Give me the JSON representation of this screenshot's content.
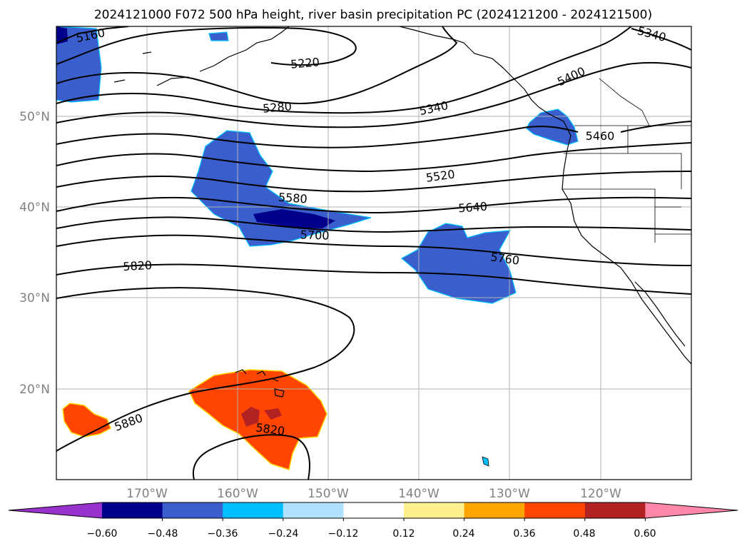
{
  "title": "2024121000 F072 500 hPa height, river basin precipitation PC (2024121200 - 2024121500)",
  "lat_labels": [
    "50°N",
    "40°N",
    "30°N",
    "20°N"
  ],
  "lon_labels": [
    "170°W",
    "160°W",
    "150°W",
    "140°W",
    "130°W",
    "120°W"
  ],
  "contour_labels": [
    "5160",
    "5220",
    "5340",
    "5400",
    "5280",
    "5340",
    "5460",
    "5520",
    "5580",
    "5640",
    "5700",
    "5760",
    "5820",
    "5880",
    "5820"
  ],
  "colorbar": {
    "ticks": [
      "−0.60",
      "−0.48",
      "−0.36",
      "−0.24",
      "−0.12",
      "0.12",
      "0.24",
      "0.36",
      "0.48",
      "0.60"
    ],
    "colors": [
      "#9932cc",
      "#00008b",
      "#3a5fcd",
      "#00bfff",
      "#b0e2ff",
      "#ffffff",
      "#fff08f",
      "#ffa500",
      "#ff4500",
      "#b22222",
      "#ff88aa"
    ]
  }
}
